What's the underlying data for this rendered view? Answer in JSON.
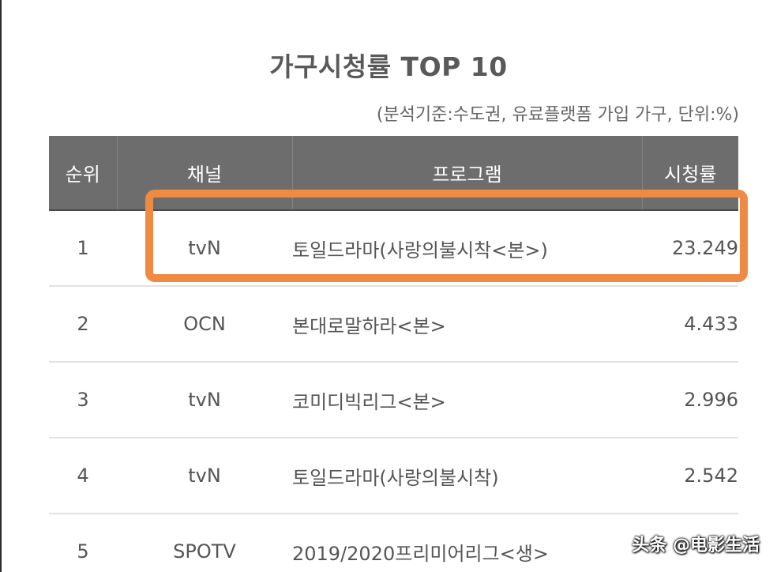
{
  "title": "가구시청률 TOP 10",
  "subtitle": "(분석기준:수도권, 유료플랫폼 가입 가구, 단위:%)",
  "table": {
    "headers": {
      "rank": "순위",
      "channel": "채널",
      "program": "프로그램",
      "rating": "시청률"
    },
    "rows": [
      {
        "rank": "1",
        "channel": "tvN",
        "program": "토일드라마(사랑의불시착<본>)",
        "rating": "23.249"
      },
      {
        "rank": "2",
        "channel": "OCN",
        "program": "본대로말하라<본>",
        "rating": "4.433"
      },
      {
        "rank": "3",
        "channel": "tvN",
        "program": "코미디빅리그<본>",
        "rating": "2.996"
      },
      {
        "rank": "4",
        "channel": "tvN",
        "program": "토일드라마(사랑의불시착)",
        "rating": "2.542"
      },
      {
        "rank": "5",
        "channel": "SPOTV",
        "program": "2019/2020프리미어리그<생>",
        "rating": ""
      }
    ]
  },
  "watermark": "头条 @电影生活",
  "colors": {
    "header_bg": "#6d6d6d",
    "rating_text": "#2f9aa8",
    "highlight_border": "#ef8a43"
  }
}
